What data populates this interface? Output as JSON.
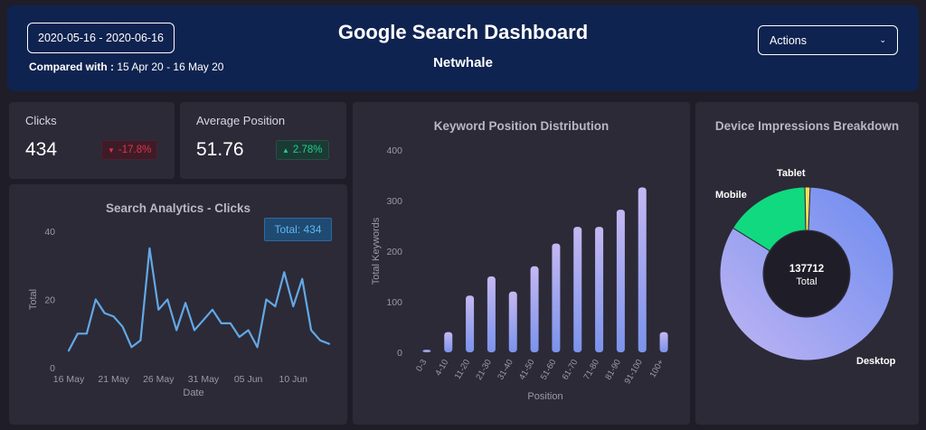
{
  "header": {
    "date_range": "2020-05-16 - 2020-06-16",
    "compared_label": "Compared with :",
    "compared_range": "15 Apr 20 - 16 May 20",
    "title": "Google Search Dashboard",
    "subtitle": "Netwhale",
    "actions_label": "Actions"
  },
  "kpis": {
    "clicks": {
      "label": "Clicks",
      "value": "434",
      "change": "-17.8%",
      "direction": "down"
    },
    "avg_position": {
      "label": "Average Position",
      "value": "51.76",
      "change": "2.78%",
      "direction": "up"
    }
  },
  "colors": {
    "line": "#62a8e6",
    "bar_top": "#c4b8f2",
    "bar_bottom": "#7b93ec",
    "desktop": "#8a9cf0",
    "mobile": "#11d97f",
    "tablet": "#f0e05a",
    "down": "#e0344b",
    "up": "#1fd08a"
  },
  "chart_data": [
    {
      "type": "line",
      "title": "Search Analytics - Clicks",
      "xlabel": "Date",
      "ylabel": "Total",
      "total_badge": "Total: 434",
      "ylim": [
        0,
        40
      ],
      "yticks": [
        "0",
        "20",
        "40"
      ],
      "xtick_labels": [
        "16 May",
        "21 May",
        "26 May",
        "31 May",
        "05 Jun",
        "10 Jun"
      ],
      "xtick_index": [
        0,
        5,
        10,
        15,
        20,
        25
      ],
      "values": [
        5,
        10,
        10,
        20,
        16,
        15,
        12,
        6,
        8,
        35,
        17,
        20,
        11,
        19,
        11,
        14,
        17,
        13,
        13,
        9,
        11,
        6,
        20,
        18,
        28,
        18,
        26,
        11,
        8,
        7
      ]
    },
    {
      "type": "bar",
      "title": "Keyword Position Distribution",
      "xlabel": "Position",
      "ylabel": "Total Keywords",
      "ylim": [
        0,
        400
      ],
      "yticks": [
        "0",
        "100",
        "200",
        "300",
        "400"
      ],
      "categories": [
        "0-3",
        "4-10",
        "11-20",
        "21-30",
        "31-40",
        "41-50",
        "51-60",
        "61-70",
        "71-80",
        "81-90",
        "91-100",
        "100+"
      ],
      "values": [
        5,
        40,
        112,
        150,
        120,
        170,
        215,
        248,
        248,
        282,
        326,
        40
      ]
    },
    {
      "type": "pie",
      "title": "Device Impressions Breakdown",
      "center_value": "137712",
      "center_label": "Total",
      "slices": [
        {
          "label": "Desktop",
          "value": 114600
        },
        {
          "label": "Mobile",
          "value": 21800
        },
        {
          "label": "Tablet",
          "value": 1312
        }
      ]
    }
  ]
}
